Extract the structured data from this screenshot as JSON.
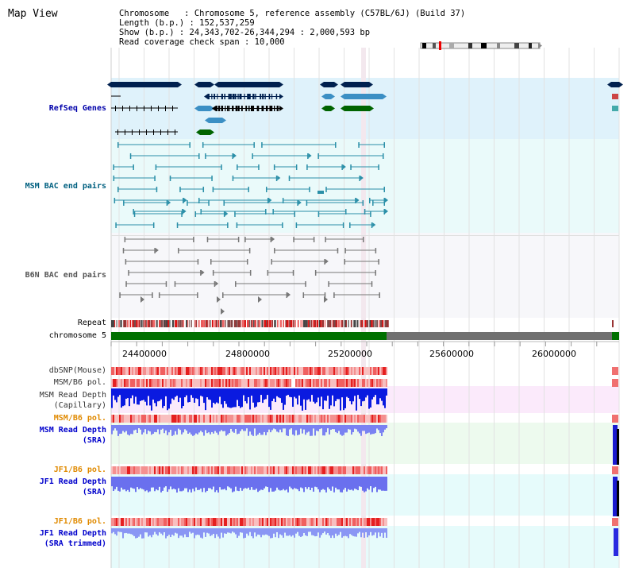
{
  "title": "Map View",
  "info": {
    "chromosome_line": "Chromosome   : Chromosome 5, reference assembly (C57BL/6J) (Build 37)",
    "length_line": "Length (b.p.) : 152,537,259",
    "show_line": "Show (b.p.) : 24,343,702-26,344,294 : 2,000,593 bp",
    "span_line": "Read coverage check span : 10,000"
  },
  "tracks": {
    "refseq": "RefSeq Genes",
    "msm_bac": "MSM BAC end pairs",
    "b6n_bac": "B6N BAC end pairs",
    "repeat": "Repeat",
    "chromosome": "chromosome 5",
    "dbsnp": "dbSNP(Mouse)",
    "msm_b6_pol_1": "MSM/B6 pol.",
    "msm_read_depth_cap_1": "MSM Read Depth",
    "msm_read_depth_cap_2": "(Capillary)",
    "msm_b6_pol_2": "MSM/B6 pol.",
    "msm_read_depth_sra_1": "MSM Read Depth",
    "msm_read_depth_sra_2": "(SRA)",
    "jf1_b6_pol_1": "JF1/B6 pol.",
    "jf1_read_depth_sra_1": "JF1 Read Depth",
    "jf1_read_depth_sra_2": "(SRA)",
    "jf1_b6_pol_2": "JF1/B6 pol.",
    "jf1_read_depth_trim_1": "JF1 Read Depth",
    "jf1_read_depth_trim_2": "(SRA trimmed)"
  },
  "axis": {
    "ticks": [
      "24400000",
      "24800000",
      "25200000",
      "25600000",
      "26000000"
    ]
  },
  "colors": {
    "refseq_label": "#0000aa",
    "msm_label": "#006080",
    "b6n_label": "#555555",
    "pol_label": "#e08a00",
    "depth_label": "#0000cc",
    "gene_dark": "#00204f",
    "gene_light": "#3b8fc4",
    "gene_green": "#006400",
    "chrom_green": "#007000",
    "chrom_grey": "#707070"
  }
}
